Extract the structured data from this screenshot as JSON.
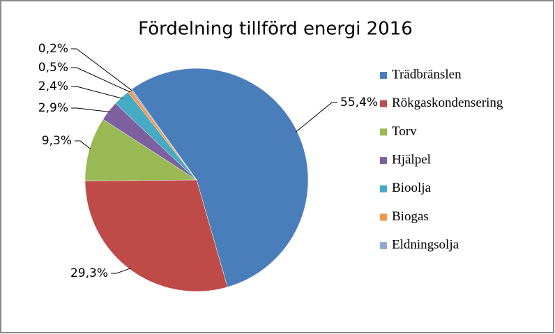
{
  "chart_data": {
    "type": "pie",
    "title": "Fördelning tillförd energi 2016",
    "categories": [
      "Trädbränslen",
      "Rökgaskondensering",
      "Torv",
      "Hjälpel",
      "Bioolja",
      "Biogas",
      "Eldningsolja"
    ],
    "values": [
      55.4,
      29.3,
      9.3,
      2.9,
      2.4,
      0.5,
      0.2
    ],
    "value_labels": [
      "55,4%",
      "29,3%",
      "9,3%",
      "2,9%",
      "2,4%",
      "0,5%",
      "0,2%"
    ],
    "colors": [
      "#4a7ebb",
      "#be4b48",
      "#98b954",
      "#7d60a0",
      "#46aac5",
      "#f79646",
      "#8fa9d1"
    ],
    "legend": "right"
  }
}
